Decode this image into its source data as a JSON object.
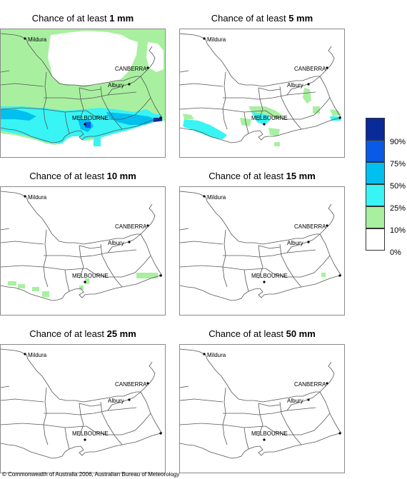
{
  "panels": [
    {
      "prefix": "Chance of at least",
      "amount": "1 mm"
    },
    {
      "prefix": "Chance of at least",
      "amount": "5 mm"
    },
    {
      "prefix": "Chance of at least",
      "amount": "10 mm"
    },
    {
      "prefix": "Chance of at least",
      "amount": "15 mm"
    },
    {
      "prefix": "Chance of at least",
      "amount": "25 mm"
    },
    {
      "prefix": "Chance of at least",
      "amount": "50 mm"
    }
  ],
  "map_labels": {
    "mildura": "Mildura",
    "canberra": "CANBERRA",
    "albury": "Albury",
    "melbourne": "MELBOURNE"
  },
  "legend": {
    "labels": [
      "90%",
      "75%",
      "50%",
      "25%",
      "10%",
      "0%"
    ],
    "colors": [
      "#0a2a9a",
      "#0a5ae8",
      "#00c0f0",
      "#38f4f4",
      "#a8f0a0",
      "#ffffff"
    ]
  },
  "colors": {
    "green": "#a8f0a0",
    "cyan": "#38f4f4",
    "sky": "#00c0f0",
    "blue": "#0a5ae8",
    "navy": "#0a2a9a"
  },
  "copyright": "© Commonwealth of Australia 2006, Australian Bureau of Meteorology"
}
